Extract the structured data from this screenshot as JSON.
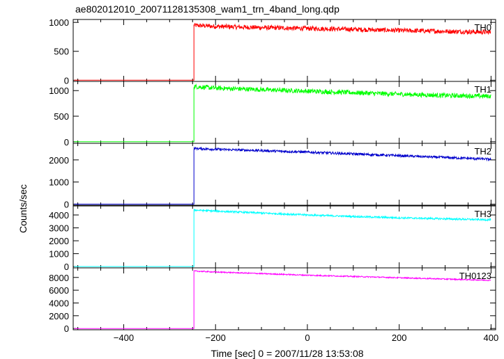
{
  "chart_data": {
    "type": "line",
    "title": "ae802012010_20071128135308_wam1_trn_4band_long.qdp",
    "xlabel": "Time [sec] 0 = 2007/11/28 13:53:08",
    "ylabel": "Counts/sec",
    "xlim": [
      -510,
      410
    ],
    "x_ticks": [
      -400,
      -200,
      0,
      200,
      400
    ],
    "grid": false,
    "trigger_time": -247,
    "pre_trigger_level": 0,
    "panels": [
      {
        "name": "TH0",
        "color": "#ff0000",
        "ylim": [
          -20,
          1050
        ],
        "y_ticks": [
          0,
          500,
          1000
        ],
        "x": [
          -247,
          -200,
          -100,
          0,
          100,
          200,
          300,
          400
        ],
        "y": [
          950,
          930,
          910,
          895,
          880,
          860,
          845,
          830
        ],
        "noise": 40
      },
      {
        "name": "TH1",
        "color": "#00ff00",
        "ylim": [
          -30,
          1180
        ],
        "y_ticks": [
          0,
          500,
          1000
        ],
        "x": [
          -247,
          -200,
          -100,
          0,
          100,
          200,
          300,
          400
        ],
        "y": [
          1080,
          1050,
          1020,
          990,
          960,
          930,
          905,
          890
        ],
        "noise": 45
      },
      {
        "name": "TH2",
        "color": "#0000cc",
        "ylim": [
          -50,
          2750
        ],
        "y_ticks": [
          0,
          1000,
          2000
        ],
        "x": [
          -247,
          -200,
          -100,
          0,
          100,
          200,
          300,
          400
        ],
        "y": [
          2520,
          2480,
          2420,
          2350,
          2270,
          2190,
          2110,
          2030
        ],
        "noise": 55
      },
      {
        "name": "TH3",
        "color": "#00ffff",
        "ylim": [
          -100,
          4700
        ],
        "y_ticks": [
          0,
          1000,
          2000,
          3000,
          4000
        ],
        "x": [
          -247,
          -200,
          -100,
          0,
          100,
          200,
          300,
          400
        ],
        "y": [
          4380,
          4300,
          4150,
          4000,
          3880,
          3780,
          3700,
          3620
        ],
        "noise": 70
      },
      {
        "name": "TH0123",
        "color": "#ff00ff",
        "ylim": [
          -200,
          9500
        ],
        "y_ticks": [
          0,
          2000,
          4000,
          6000,
          8000
        ],
        "x": [
          -247,
          -200,
          -100,
          0,
          100,
          200,
          300,
          400
        ],
        "y": [
          9000,
          8850,
          8600,
          8350,
          8150,
          7950,
          7750,
          7550
        ],
        "noise": 90
      }
    ]
  }
}
